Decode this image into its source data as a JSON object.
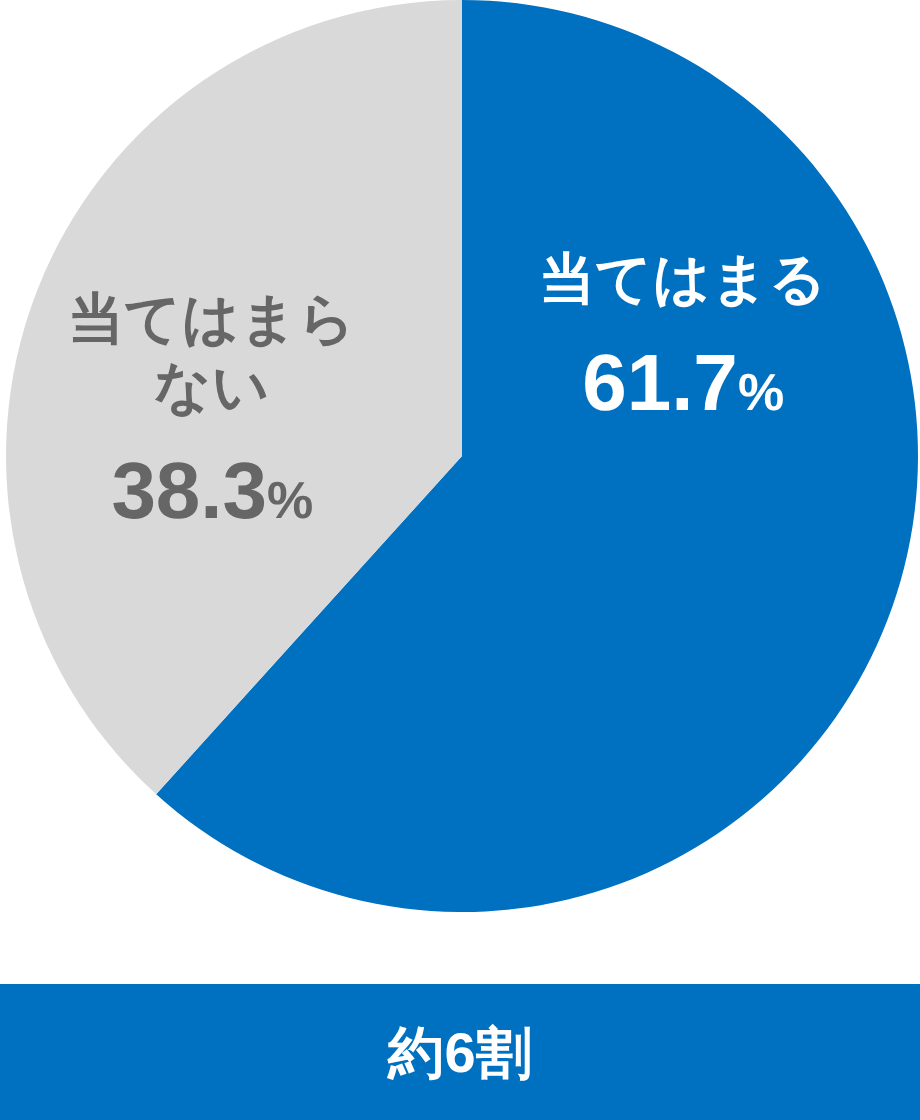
{
  "chart_data": {
    "type": "pie",
    "categories": [
      "当てはまる",
      "当てはまらない"
    ],
    "values": [
      61.7,
      38.3
    ],
    "colors": [
      "#0070c0",
      "#d9d9d9"
    ],
    "value_labels": [
      "61.7%",
      "38.3%"
    ],
    "annotations": [
      "約6割"
    ]
  }
}
